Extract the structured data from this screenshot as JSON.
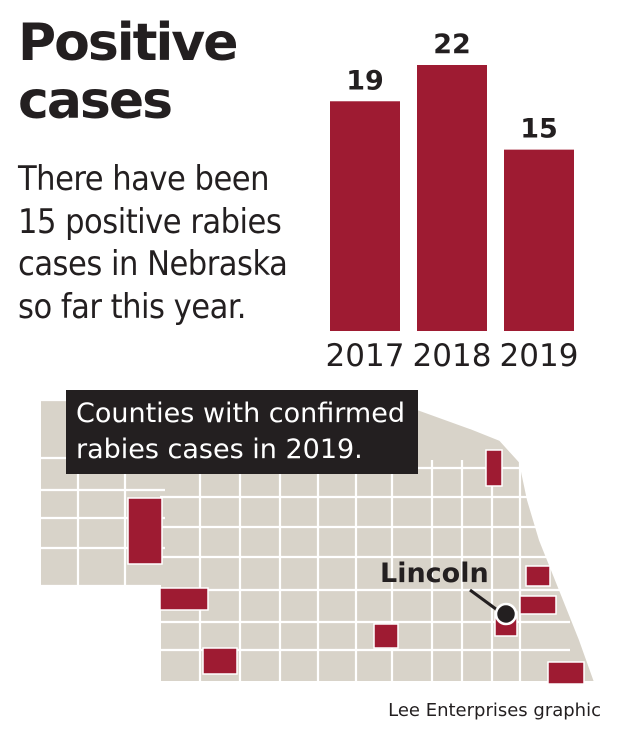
{
  "header": {
    "title": "Positive cases",
    "subtitle": "There have been 15 positive rabies cases in Nebraska so far this year."
  },
  "chart_data": {
    "type": "bar",
    "categories": [
      "2017",
      "2018",
      "2019"
    ],
    "values": [
      19,
      22,
      15
    ],
    "title": "Positive cases",
    "xlabel": "",
    "ylabel": "",
    "grid": false,
    "bar_color": "#9e1b32"
  },
  "map": {
    "label": "Counties with confirmed rabies cases in 2019.",
    "city_label": "Lincoln",
    "county_fill": "#d8d3c9",
    "highlight_fill": "#9e1b32"
  },
  "credit": "Lee Enterprises graphic"
}
